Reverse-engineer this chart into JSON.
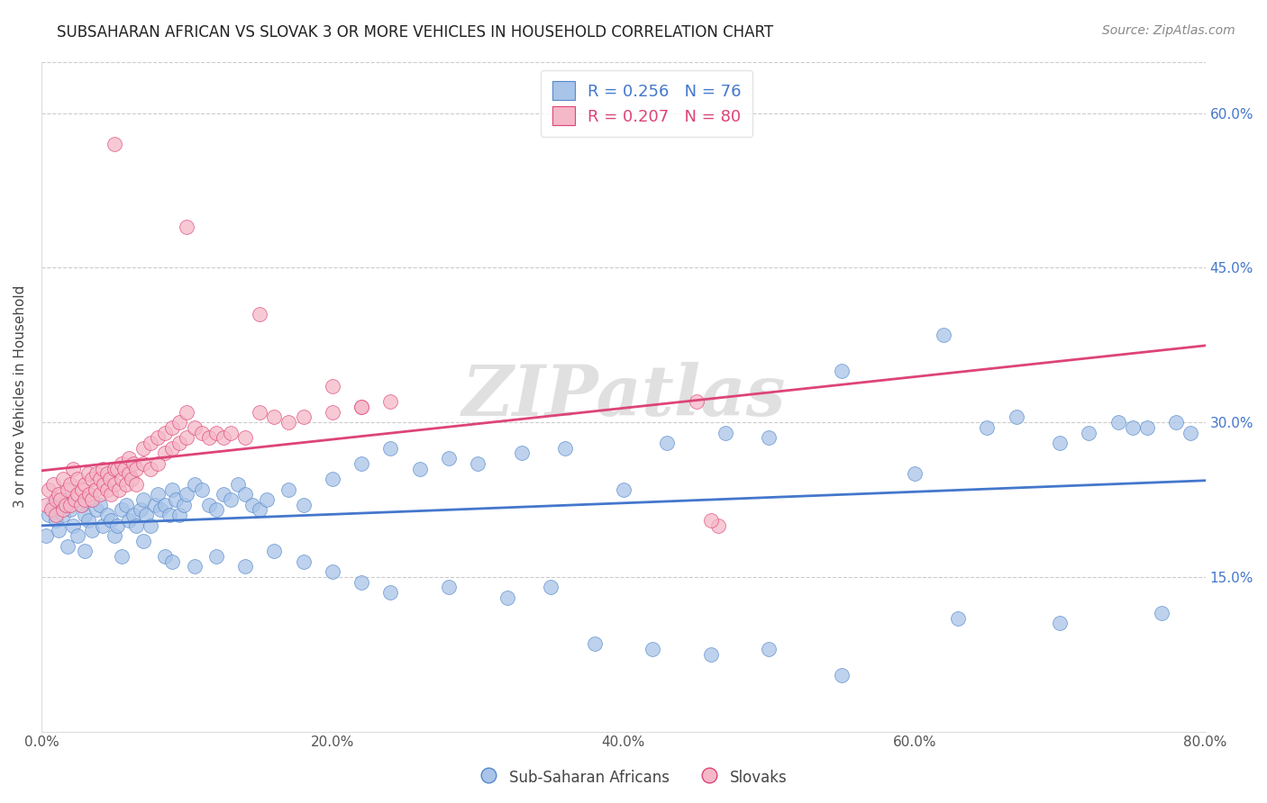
{
  "title": "SUBSAHARAN AFRICAN VS SLOVAK 3 OR MORE VEHICLES IN HOUSEHOLD CORRELATION CHART",
  "source": "Source: ZipAtlas.com",
  "ylabel": "3 or more Vehicles in Household",
  "xlim": [
    0.0,
    80.0
  ],
  "ylim": [
    0.0,
    65.0
  ],
  "y_ticks": [
    15.0,
    30.0,
    45.0,
    60.0
  ],
  "x_ticks": [
    0.0,
    20.0,
    40.0,
    60.0,
    80.0
  ],
  "blue_R": 0.256,
  "blue_N": 76,
  "pink_R": 0.207,
  "pink_N": 80,
  "blue_color": "#a8c4e8",
  "pink_color": "#f5b8c8",
  "blue_edge_color": "#5588cc",
  "pink_edge_color": "#dd4477",
  "blue_line_color": "#4477cc",
  "pink_line_color": "#dd4477",
  "watermark": "ZIPatlas",
  "blue_x": [
    0.5,
    0.8,
    1.0,
    1.2,
    1.5,
    1.7,
    2.0,
    2.2,
    2.5,
    2.8,
    3.0,
    3.2,
    3.5,
    3.8,
    4.0,
    4.2,
    4.5,
    4.8,
    5.0,
    5.2,
    5.5,
    5.8,
    6.0,
    6.3,
    6.5,
    6.8,
    7.0,
    7.2,
    7.5,
    7.8,
    8.0,
    8.2,
    8.5,
    8.8,
    9.0,
    9.2,
    9.5,
    9.8,
    10.0,
    10.5,
    11.0,
    11.5,
    12.0,
    12.5,
    13.0,
    13.5,
    14.0,
    14.5,
    15.0,
    15.5,
    17.0,
    18.0,
    20.0,
    22.0,
    24.0,
    26.0,
    28.0,
    30.0,
    33.0,
    36.0,
    40.0,
    43.0,
    47.0,
    50.0,
    55.0,
    60.0,
    62.0,
    65.0,
    67.0,
    70.0,
    72.0,
    74.0,
    75.0,
    76.0,
    78.0,
    79.0
  ],
  "blue_y": [
    21.0,
    22.0,
    20.5,
    19.5,
    21.0,
    22.5,
    21.5,
    20.0,
    19.0,
    22.0,
    21.0,
    20.5,
    19.5,
    21.5,
    22.0,
    20.0,
    21.0,
    20.5,
    19.0,
    20.0,
    21.5,
    22.0,
    20.5,
    21.0,
    20.0,
    21.5,
    22.5,
    21.0,
    20.0,
    22.0,
    23.0,
    21.5,
    22.0,
    21.0,
    23.5,
    22.5,
    21.0,
    22.0,
    23.0,
    24.0,
    23.5,
    22.0,
    21.5,
    23.0,
    22.5,
    24.0,
    23.0,
    22.0,
    21.5,
    22.5,
    23.5,
    22.0,
    24.5,
    26.0,
    27.5,
    25.5,
    26.5,
    26.0,
    27.0,
    27.5,
    23.5,
    28.0,
    29.0,
    28.5,
    35.0,
    25.0,
    38.5,
    29.5,
    30.5,
    28.0,
    29.0,
    30.0,
    29.5,
    29.5,
    30.0,
    29.0
  ],
  "blue_y_outliers_x": [
    0.3,
    1.8,
    3.0,
    5.5,
    7.0,
    8.5,
    9.0,
    10.5,
    12.0,
    14.0,
    16.0,
    18.0,
    20.0,
    22.0,
    24.0,
    28.0,
    32.0,
    35.0,
    38.0,
    42.0,
    46.0,
    50.0,
    55.0,
    63.0,
    70.0,
    77.0
  ],
  "blue_y_outliers_y": [
    19.0,
    18.0,
    17.5,
    17.0,
    18.5,
    17.0,
    16.5,
    16.0,
    17.0,
    16.0,
    17.5,
    16.5,
    15.5,
    14.5,
    13.5,
    14.0,
    13.0,
    14.0,
    8.5,
    8.0,
    7.5,
    8.0,
    5.5,
    11.0,
    10.5,
    11.5
  ],
  "pink_x": [
    0.3,
    0.5,
    0.7,
    0.8,
    1.0,
    1.0,
    1.2,
    1.3,
    1.5,
    1.5,
    1.7,
    1.8,
    2.0,
    2.0,
    2.2,
    2.3,
    2.5,
    2.5,
    2.7,
    2.8,
    3.0,
    3.0,
    3.2,
    3.3,
    3.5,
    3.5,
    3.7,
    3.8,
    4.0,
    4.0,
    4.2,
    4.3,
    4.5,
    4.5,
    4.7,
    4.8,
    5.0,
    5.0,
    5.2,
    5.3,
    5.5,
    5.5,
    5.7,
    5.8,
    6.0,
    6.0,
    6.2,
    6.3,
    6.5,
    6.5,
    7.0,
    7.0,
    7.5,
    7.5,
    8.0,
    8.0,
    8.5,
    8.5,
    9.0,
    9.0,
    9.5,
    9.5,
    10.0,
    10.0,
    10.5,
    11.0,
    11.5,
    12.0,
    12.5,
    13.0,
    14.0,
    15.0,
    16.0,
    17.0,
    18.0,
    20.0,
    22.0,
    24.0,
    45.0,
    46.5
  ],
  "pink_y": [
    22.0,
    23.5,
    21.5,
    24.0,
    22.5,
    21.0,
    23.0,
    22.5,
    24.5,
    21.5,
    22.0,
    23.5,
    22.0,
    24.0,
    25.5,
    22.5,
    23.0,
    24.5,
    22.0,
    23.5,
    22.5,
    24.0,
    25.0,
    23.0,
    22.5,
    24.5,
    23.5,
    25.0,
    24.5,
    23.0,
    25.5,
    24.0,
    23.5,
    25.0,
    24.5,
    23.0,
    25.5,
    24.0,
    25.5,
    23.5,
    26.0,
    24.5,
    25.5,
    24.0,
    26.5,
    25.0,
    24.5,
    26.0,
    25.5,
    24.0,
    27.5,
    26.0,
    28.0,
    25.5,
    28.5,
    26.0,
    29.0,
    27.0,
    29.5,
    27.5,
    30.0,
    28.0,
    31.0,
    28.5,
    29.5,
    29.0,
    28.5,
    29.0,
    28.5,
    29.0,
    28.5,
    31.0,
    30.5,
    30.0,
    30.5,
    31.0,
    31.5,
    32.0,
    32.0,
    20.0
  ],
  "pink_outliers_x": [
    5.0,
    10.0,
    15.0,
    20.0,
    22.0,
    46.0
  ],
  "pink_outliers_y": [
    57.0,
    49.0,
    40.5,
    33.5,
    31.5,
    20.5
  ]
}
